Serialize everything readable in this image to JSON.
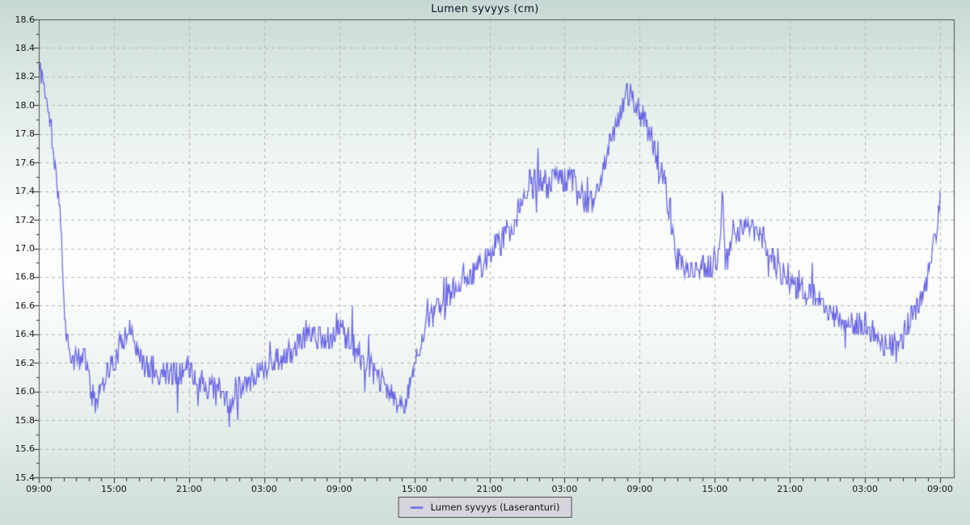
{
  "page": {
    "title": "Lumen syvyys (cm)"
  },
  "legend": {
    "label": "Lumen syvyys (Laseranturi)"
  },
  "chart_data": {
    "type": "line",
    "title": "Lumen syvyys (cm)",
    "xlabel": "",
    "ylabel": "",
    "legend_position": "bottom-center",
    "grid": {
      "on": true,
      "color": "#b5b5b5",
      "dash": [
        4,
        4
      ]
    },
    "y_axis": {
      "min": 15.4,
      "max": 18.6,
      "major_step": 0.2,
      "minor_step": 0.1,
      "tick_labels": [
        "18.6",
        "18.4",
        "18.2",
        "18.0",
        "17.8",
        "17.6",
        "17.4",
        "17.2",
        "17.0",
        "16.8",
        "16.6",
        "16.4",
        "16.2",
        "16.0",
        "15.8",
        "15.6",
        "15.4"
      ]
    },
    "x_axis": {
      "total_hours": 72,
      "major_step_hours": 6,
      "minor_step_hours": 1,
      "tick_labels": [
        "09:00",
        "15:00",
        "21:00",
        "03:00",
        "09:00",
        "15:00",
        "21:00",
        "03:00",
        "09:00",
        "15:00",
        "21:00",
        "03:00",
        "09:00"
      ]
    },
    "colors": {
      "axis": "#4f4f4f",
      "tick": "#2a2a2a",
      "title_text": "#0f1024",
      "legend_bg": "#d6d4dc",
      "legend_border": "#4f4f4f",
      "line": "#6a66e4",
      "legend_swatch": "#7c79e8"
    },
    "series": [
      {
        "name": "Lumen syvyys (Laseranturi)",
        "color": "#6a66e4",
        "noise": {
          "base": 0.09,
          "spike_chance": 0.08,
          "spike": 0.18,
          "quantize": 0.05,
          "seed": 11,
          "samples": 1150
        },
        "trend_points_hour_value": [
          [
            0,
            18.25
          ],
          [
            0.3,
            18.2
          ],
          [
            0.6,
            18.05
          ],
          [
            1,
            17.8
          ],
          [
            1.4,
            17.5
          ],
          [
            1.7,
            17.25
          ],
          [
            1.9,
            16.85
          ],
          [
            2.1,
            16.5
          ],
          [
            2.4,
            16.3
          ],
          [
            2.8,
            16.22
          ],
          [
            3.2,
            16.2
          ],
          [
            3.6,
            16.28
          ],
          [
            4.0,
            16.1
          ],
          [
            4.2,
            16.0
          ],
          [
            4.4,
            15.92
          ],
          [
            4.7,
            15.98
          ],
          [
            5.0,
            16.1
          ],
          [
            5.5,
            16.15
          ],
          [
            6.0,
            16.2
          ],
          [
            6.5,
            16.3
          ],
          [
            7.0,
            16.45
          ],
          [
            7.5,
            16.42
          ],
          [
            8.0,
            16.25
          ],
          [
            8.5,
            16.18
          ],
          [
            9.0,
            16.15
          ],
          [
            9.5,
            16.1
          ],
          [
            10.0,
            16.15
          ],
          [
            11.0,
            16.12
          ],
          [
            12.0,
            16.15
          ],
          [
            12.5,
            16.1
          ],
          [
            13.0,
            16.05
          ],
          [
            14.0,
            16.0
          ],
          [
            14.8,
            16.0
          ],
          [
            15.2,
            15.85
          ],
          [
            15.6,
            16.0
          ],
          [
            16.0,
            16.05
          ],
          [
            17.0,
            16.1
          ],
          [
            18.0,
            16.15
          ],
          [
            19.0,
            16.22
          ],
          [
            20.0,
            16.25
          ],
          [
            21.0,
            16.35
          ],
          [
            21.5,
            16.42
          ],
          [
            22.0,
            16.4
          ],
          [
            23.0,
            16.35
          ],
          [
            23.7,
            16.42
          ],
          [
            24.0,
            16.45
          ],
          [
            24.5,
            16.4
          ],
          [
            25.0,
            16.35
          ],
          [
            25.5,
            16.25
          ],
          [
            26.0,
            16.2
          ],
          [
            27.0,
            16.1
          ],
          [
            28.0,
            16.0
          ],
          [
            28.6,
            15.92
          ],
          [
            29.0,
            15.9
          ],
          [
            29.5,
            15.95
          ],
          [
            30.0,
            16.2
          ],
          [
            30.5,
            16.35
          ],
          [
            31.0,
            16.45
          ],
          [
            32.0,
            16.6
          ],
          [
            33.0,
            16.7
          ],
          [
            34.0,
            16.8
          ],
          [
            35.0,
            16.85
          ],
          [
            36.0,
            16.95
          ],
          [
            37.0,
            17.05
          ],
          [
            38.0,
            17.2
          ],
          [
            39.0,
            17.4
          ],
          [
            39.5,
            17.45
          ],
          [
            40.5,
            17.45
          ],
          [
            41.5,
            17.48
          ],
          [
            42.0,
            17.45
          ],
          [
            42.5,
            17.5
          ],
          [
            43.0,
            17.4
          ],
          [
            43.5,
            17.32
          ],
          [
            44.0,
            17.3
          ],
          [
            44.5,
            17.4
          ],
          [
            45.0,
            17.55
          ],
          [
            45.7,
            17.75
          ],
          [
            46.3,
            17.9
          ],
          [
            47.0,
            18.1
          ],
          [
            47.4,
            18.05
          ],
          [
            48.0,
            17.95
          ],
          [
            48.5,
            17.85
          ],
          [
            49.0,
            17.75
          ],
          [
            49.5,
            17.6
          ],
          [
            50.0,
            17.45
          ],
          [
            50.4,
            17.25
          ],
          [
            50.8,
            17.0
          ],
          [
            51.2,
            16.92
          ],
          [
            52.0,
            16.8
          ],
          [
            52.5,
            16.85
          ],
          [
            53.0,
            16.9
          ],
          [
            53.5,
            16.85
          ],
          [
            54.0,
            16.9
          ],
          [
            54.4,
            16.95
          ],
          [
            54.6,
            17.5
          ],
          [
            54.8,
            16.95
          ],
          [
            55.2,
            17.0
          ],
          [
            55.6,
            17.1
          ],
          [
            56.0,
            17.15
          ],
          [
            57.0,
            17.15
          ],
          [
            58.0,
            17.05
          ],
          [
            59.0,
            16.9
          ],
          [
            60.0,
            16.75
          ],
          [
            61.0,
            16.7
          ],
          [
            62.0,
            16.65
          ],
          [
            63.0,
            16.55
          ],
          [
            64.0,
            16.5
          ],
          [
            65.0,
            16.45
          ],
          [
            66.0,
            16.45
          ],
          [
            67.0,
            16.4
          ],
          [
            67.5,
            16.3
          ],
          [
            68.0,
            16.35
          ],
          [
            68.5,
            16.28
          ],
          [
            69.0,
            16.4
          ],
          [
            70.0,
            16.55
          ],
          [
            70.5,
            16.65
          ],
          [
            71.0,
            16.8
          ],
          [
            71.4,
            16.95
          ],
          [
            71.7,
            17.1
          ],
          [
            71.9,
            17.25
          ],
          [
            72,
            17.45
          ]
        ]
      }
    ]
  }
}
